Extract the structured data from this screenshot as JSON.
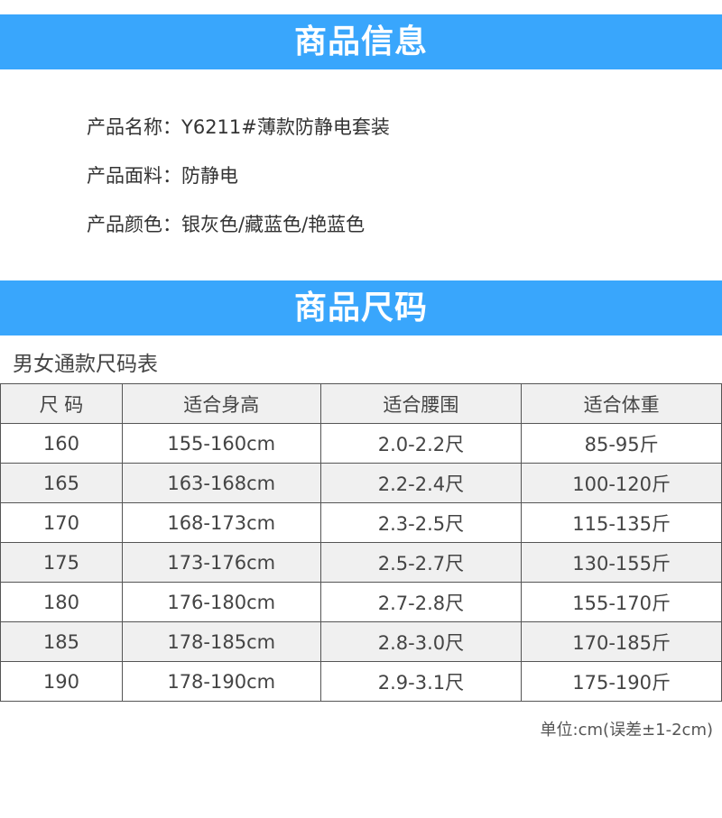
{
  "section1": {
    "title": "商品信息"
  },
  "info": [
    {
      "label": "产品名称：",
      "value": "Y6211#薄款防静电套装"
    },
    {
      "label": "产品面料：",
      "value": "防静电"
    },
    {
      "label": "产品颜色：",
      "value": "银灰色/藏蓝色/艳蓝色"
    }
  ],
  "section2": {
    "title": "商品尺码"
  },
  "table_title": "男女通款尺码表",
  "table": {
    "headers": [
      "尺 码",
      "适合身高",
      "适合腰围",
      "适合体重"
    ],
    "rows": [
      [
        "160",
        "155-160cm",
        "2.0-2.2尺",
        "85-95斤"
      ],
      [
        "165",
        "163-168cm",
        "2.2-2.4尺",
        "100-120斤"
      ],
      [
        "170",
        "168-173cm",
        "2.3-2.5尺",
        "115-135斤"
      ],
      [
        "175",
        "173-176cm",
        "2.5-2.7尺",
        "130-155斤"
      ],
      [
        "180",
        "176-180cm",
        "2.7-2.8尺",
        "155-170斤"
      ],
      [
        "185",
        "178-185cm",
        "2.8-3.0尺",
        "170-185斤"
      ],
      [
        "190",
        "178-190cm",
        "2.9-3.1尺",
        "175-190斤"
      ]
    ]
  },
  "note": "单位:cm(误差±1-2cm)",
  "colors": {
    "banner": "#39a6fc"
  }
}
